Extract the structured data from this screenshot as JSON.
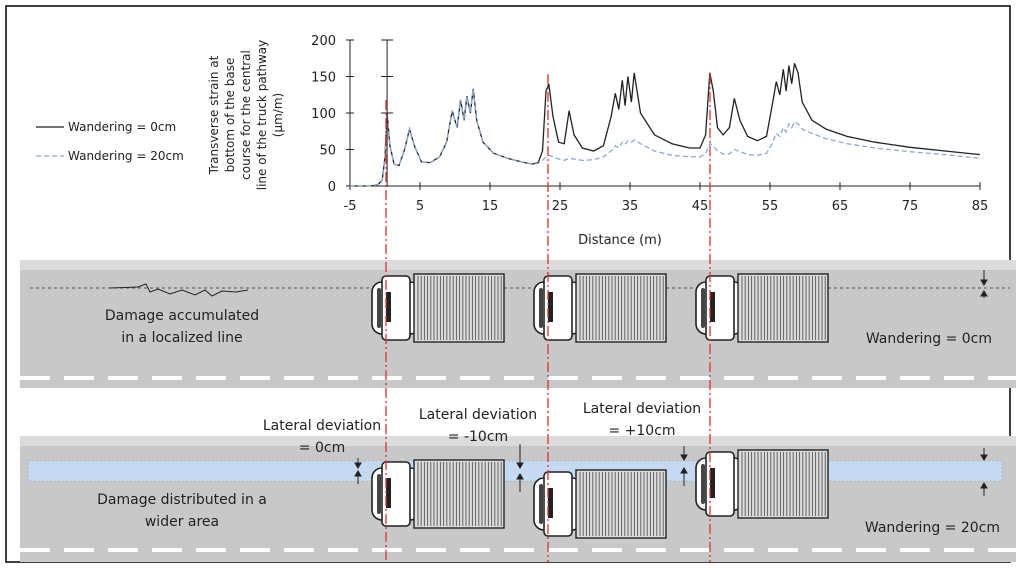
{
  "chart_data": {
    "type": "line",
    "xlabel": "Distance (m)",
    "ylabel_lines": [
      "Transverse strain at",
      "bottom of the base",
      "course for the central",
      "line of the truck pathway",
      "(μm/m)"
    ],
    "xlim": [
      -5,
      85
    ],
    "ylim": [
      0,
      200
    ],
    "x_ticks": [
      -5,
      5,
      15,
      25,
      35,
      45,
      55,
      65,
      75,
      85
    ],
    "y_ticks": [
      0,
      50,
      100,
      150,
      200
    ],
    "x_tick_labels": [
      "-5",
      "5",
      "15",
      "25",
      "35",
      "45",
      "55",
      "65",
      "75",
      "85"
    ],
    "y_tick_labels": [
      "0",
      "50",
      "100",
      "150",
      "200"
    ],
    "series": [
      {
        "name": "Wandering = 0cm",
        "color": "#222222",
        "style": "solid",
        "x": [
          -5,
          -2,
          -1,
          -0.4,
          0,
          0.3,
          0.7,
          1.3,
          2,
          2.8,
          3.5,
          4.2,
          5.2,
          6.5,
          7.8,
          8.8,
          9.6,
          10.3,
          10.8,
          11.3,
          11.7,
          12.2,
          12.6,
          13.1,
          14,
          15.5,
          17.5,
          19.5,
          21,
          21.9,
          22.5,
          23,
          23.4,
          24,
          24.8,
          25.6,
          26.3,
          27,
          28.2,
          29.8,
          31.2,
          32.3,
          32.9,
          33.4,
          33.9,
          34.3,
          34.7,
          35.2,
          35.6,
          36.5,
          38.5,
          41,
          43.5,
          45,
          45.8,
          46.4,
          46.9,
          47.5,
          48.3,
          49.2,
          49.9,
          50.7,
          51.8,
          53.2,
          54.5,
          55.3,
          55.9,
          56.4,
          56.9,
          57.3,
          57.7,
          58.1,
          58.5,
          59,
          59.6,
          61,
          63,
          66,
          70,
          75,
          80,
          85
        ],
        "y": [
          0,
          0,
          2,
          8,
          40,
          100,
          55,
          30,
          28,
          50,
          78,
          55,
          33,
          32,
          40,
          60,
          103,
          80,
          118,
          90,
          123,
          100,
          133,
          90,
          60,
          45,
          38,
          33,
          30,
          32,
          48,
          130,
          140,
          95,
          60,
          58,
          103,
          70,
          52,
          48,
          55,
          95,
          127,
          105,
          145,
          110,
          150,
          115,
          155,
          100,
          70,
          58,
          52,
          52,
          70,
          155,
          130,
          80,
          70,
          80,
          120,
          90,
          68,
          62,
          68,
          110,
          143,
          125,
          160,
          130,
          165,
          140,
          168,
          155,
          115,
          90,
          78,
          68,
          60,
          53,
          48,
          43
        ]
      },
      {
        "name": "Wandering = 20cm",
        "color": "#8ca8d6",
        "style": "dashed",
        "x": [
          -5,
          -2,
          -1,
          -0.4,
          0,
          0.3,
          0.7,
          1.3,
          2,
          2.8,
          3.5,
          4.2,
          5.2,
          6.5,
          7.8,
          8.8,
          9.6,
          10.3,
          10.8,
          11.3,
          11.7,
          12.2,
          12.6,
          13.1,
          14,
          15.5,
          17.5,
          19.5,
          21,
          21.9,
          22.5,
          23,
          23.4,
          24,
          24.8,
          25.6,
          26.3,
          27,
          28.2,
          29.8,
          31.2,
          32.3,
          32.9,
          33.4,
          33.9,
          34.3,
          34.7,
          35.2,
          35.6,
          36.5,
          38.5,
          41,
          43.5,
          45,
          45.8,
          46.4,
          46.9,
          47.5,
          48.3,
          49.2,
          49.9,
          50.7,
          51.8,
          53.2,
          54.5,
          55.3,
          55.9,
          56.4,
          56.9,
          57.3,
          57.7,
          58.1,
          58.5,
          59,
          59.6,
          61,
          63,
          66,
          70,
          75,
          80,
          85
        ],
        "y": [
          0,
          0,
          2,
          8,
          40,
          100,
          55,
          30,
          28,
          50,
          78,
          55,
          33,
          32,
          40,
          60,
          103,
          80,
          118,
          90,
          123,
          100,
          133,
          90,
          60,
          45,
          38,
          33,
          30,
          31,
          35,
          40,
          42,
          40,
          37,
          35,
          38,
          37,
          35,
          36,
          40,
          48,
          55,
          52,
          60,
          57,
          62,
          60,
          63,
          58,
          48,
          42,
          40,
          40,
          44,
          58,
          55,
          48,
          44,
          44,
          50,
          47,
          43,
          42,
          45,
          58,
          72,
          68,
          80,
          74,
          85,
          80,
          88,
          85,
          78,
          72,
          65,
          58,
          52,
          47,
          43,
          38
        ]
      }
    ]
  },
  "legend": {
    "items": [
      {
        "label": "Wandering = 0cm"
      },
      {
        "label": "Wandering = 20cm"
      }
    ]
  },
  "road_top": {
    "damage_label_line1": "Damage accumulated",
    "damage_label_line2": "in a localized line",
    "wandering_label": "Wandering = 0cm"
  },
  "road_bottom": {
    "damage_label_line1": "Damage distributed in a",
    "damage_label_line2": "wider area",
    "wandering_label": "Wandering = 20cm",
    "deviations": [
      {
        "line1": "Lateral deviation",
        "line2": "= 0cm"
      },
      {
        "line1": "Lateral deviation",
        "line2": "= -10cm"
      },
      {
        "line1": "Lateral deviation",
        "line2": "= +10cm"
      }
    ]
  },
  "colors": {
    "road": "#c8c8c8",
    "road_light": "#dcdcdc",
    "band": "#c5d9f1",
    "guide_line": "#d9322e",
    "series_solid": "#222222",
    "series_dashed": "#8ca8d6"
  }
}
